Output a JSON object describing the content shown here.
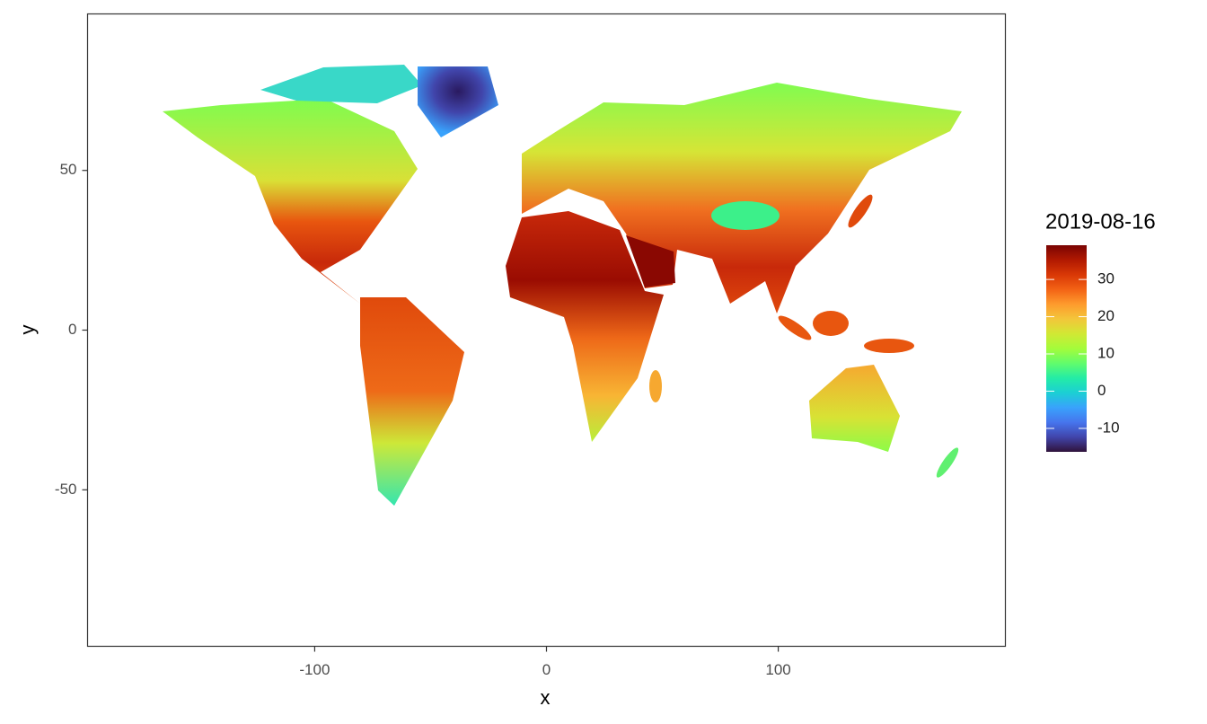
{
  "chart_data": {
    "type": "raster",
    "x_label": "x",
    "y_label": "y",
    "xlim": [
      -198,
      198
    ],
    "ylim": [
      -99,
      99
    ],
    "xticks": [
      -100,
      0,
      100
    ],
    "yticks": [
      -50,
      0,
      50
    ],
    "legend": {
      "title": "2019-08-16",
      "limits": [
        -16.3,
        39.2
      ],
      "ticks": [
        -10,
        0,
        10,
        20,
        30
      ],
      "colormap": [
        "#30123b",
        "#4145ab",
        "#4675ed",
        "#39a2fc",
        "#1bcfd4",
        "#24eca6",
        "#61fc6c",
        "#a4fc3b",
        "#d1e834",
        "#f3c63a",
        "#fe9b2d",
        "#f36315",
        "#d93806",
        "#b11901",
        "#7a0403"
      ]
    }
  }
}
